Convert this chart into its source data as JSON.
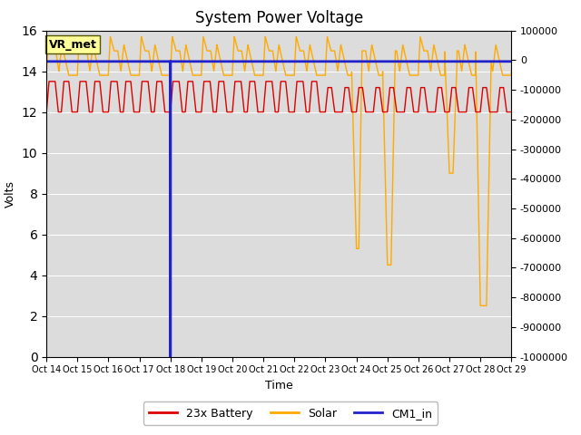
{
  "title": "System Power Voltage",
  "xlabel": "Time",
  "ylabel": "Volts",
  "ylim_left": [
    0,
    16
  ],
  "ylim_right": [
    -1000000,
    100000
  ],
  "yticks_right": [
    100000,
    0,
    -100000,
    -200000,
    -300000,
    -400000,
    -500000,
    -600000,
    -700000,
    -800000,
    -900000,
    -1000000
  ],
  "yticks_right_labels": [
    "100000",
    "0",
    "-100000",
    "-200000",
    "-300000",
    "-400000",
    "-500000",
    "-600000",
    "-700000",
    "-800000",
    "-900000",
    "-1000000"
  ],
  "yticks_left": [
    0,
    2,
    4,
    6,
    8,
    10,
    12,
    14,
    16
  ],
  "x_labels": [
    "Oct 14",
    "Oct 15",
    "Oct 16",
    "Oct 17",
    "Oct 18",
    "Oct 19",
    "Oct 20",
    "Oct 21",
    "Oct 22",
    "Oct 23",
    "Oct 24",
    "Oct 25",
    "Oct 26",
    "Oct 27",
    "Oct 28",
    "Oct 29"
  ],
  "bg_color": "#dcdcdc",
  "fig_color": "#ffffff",
  "vr_met_label": "VR_met",
  "cm1_in_value": 14.48,
  "annotation_box_color": "#ffff99",
  "annotation_box_edgecolor": "#555500",
  "line_colors": {
    "battery": "#dd0000",
    "solar": "#ffaa00",
    "cm1_in": "#2222cc"
  },
  "legend_labels": [
    "23x Battery",
    "Solar",
    "CM1_in"
  ],
  "n_days": 16,
  "title_fontsize": 12,
  "axis_label_fontsize": 9,
  "tick_fontsize": 8,
  "legend_fontsize": 9
}
